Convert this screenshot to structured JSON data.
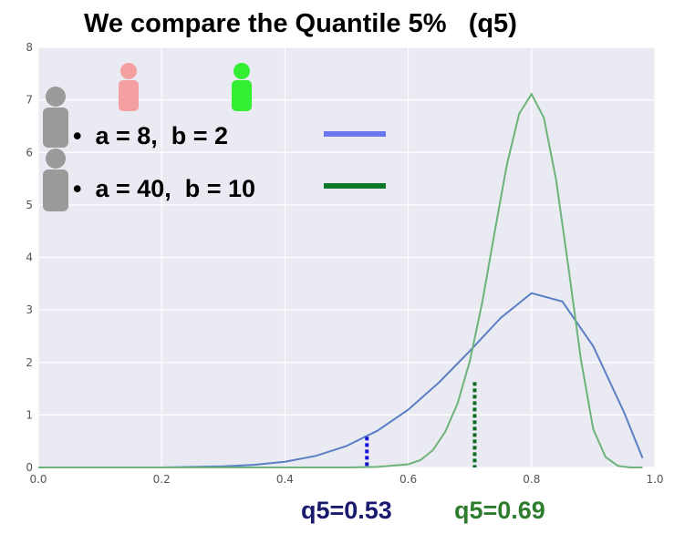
{
  "title": "We compare the Quantile 5%   (q5)",
  "legend": [
    {
      "label": "•  a = 8,  b = 2",
      "color": "#6c75f0"
    },
    {
      "label": "•  a = 40,  b = 10",
      "color": "#0a7a2a"
    }
  ],
  "annotations": {
    "q5_blue": {
      "text": "q5=0.53",
      "color": "#1a1a6e",
      "x": 0.53,
      "line_color": "#1414d4"
    },
    "q5_green": {
      "text": "q5=0.69",
      "color": "#2e7d2e",
      "x": 0.69,
      "line_color": "#0a6a1e"
    }
  },
  "icons": [
    {
      "name": "person-icon-gray",
      "color": "#9a9a9a"
    },
    {
      "name": "person-icon-gray",
      "color": "#9a9a9a"
    },
    {
      "name": "person-icon-pink",
      "color": "#f4a0a0"
    },
    {
      "name": "person-icon-green",
      "color": "#33ee33"
    }
  ],
  "chart_data": {
    "type": "line",
    "xlim": [
      0.0,
      1.0
    ],
    "ylim": [
      0,
      8
    ],
    "xticks": [
      "0.0",
      "0.2",
      "0.4",
      "0.6",
      "0.8",
      "1.0"
    ],
    "yticks": [
      "0",
      "1",
      "2",
      "3",
      "4",
      "5",
      "6",
      "7",
      "8"
    ],
    "grid": true,
    "series": [
      {
        "color": "#5a7fc4",
        "x": [
          0.0,
          0.05,
          0.1,
          0.15,
          0.2,
          0.25,
          0.3,
          0.35,
          0.4,
          0.45,
          0.5,
          0.55,
          0.6,
          0.65,
          0.7,
          0.75,
          0.8,
          0.85,
          0.9,
          0.95,
          0.98
        ],
        "y": [
          0.0,
          0.0,
          0.0,
          0.0,
          0.0,
          0.01,
          0.02,
          0.05,
          0.11,
          0.22,
          0.41,
          0.7,
          1.1,
          1.62,
          2.22,
          2.85,
          3.32,
          3.16,
          2.31,
          1.05,
          0.18
        ]
      },
      {
        "color": "#6db37a",
        "x": [
          0.0,
          0.5,
          0.55,
          0.6,
          0.62,
          0.64,
          0.66,
          0.68,
          0.7,
          0.72,
          0.74,
          0.76,
          0.78,
          0.8,
          0.82,
          0.84,
          0.86,
          0.88,
          0.9,
          0.92,
          0.94,
          0.96,
          0.98
        ],
        "y": [
          0.0,
          0.0,
          0.01,
          0.06,
          0.14,
          0.33,
          0.68,
          1.22,
          2.03,
          3.14,
          4.47,
          5.77,
          6.74,
          7.11,
          6.66,
          5.47,
          3.79,
          2.06,
          0.73,
          0.2,
          0.03,
          0.0,
          0.0
        ]
      }
    ]
  }
}
